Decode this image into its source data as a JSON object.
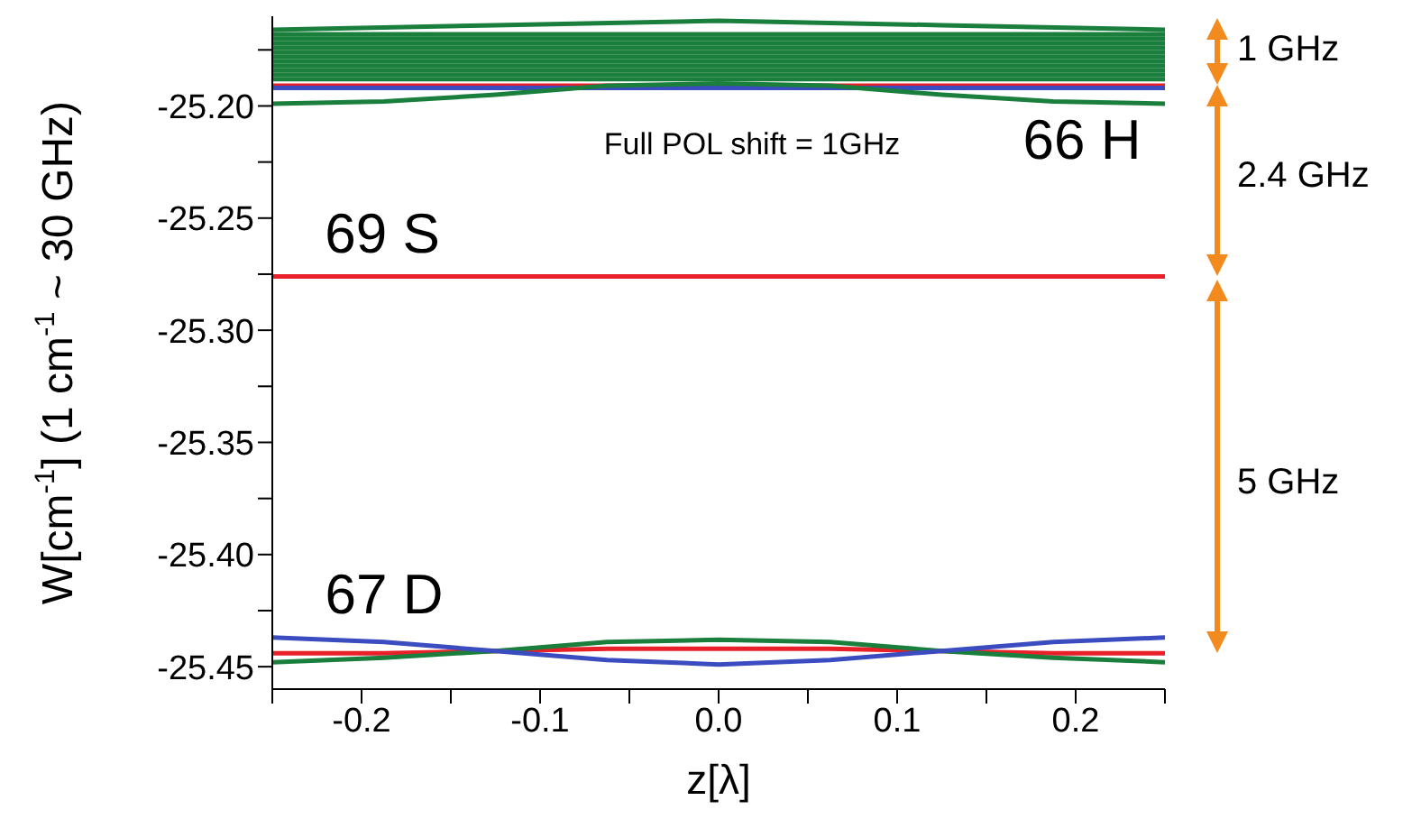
{
  "chart_data": {
    "type": "line",
    "xlabel": "z[λ]",
    "ylabel": "W[cm$^{-1}$] (1 cm$^{-1}$ ~ 30 GHz)",
    "xlim": [
      -0.25,
      0.25
    ],
    "xticks": [
      {
        "value": -0.25,
        "label": null
      },
      -0.2,
      {
        "value": -0.15,
        "label": null
      },
      -0.1,
      {
        "value": -0.05,
        "label": null
      },
      {
        "value": 0,
        "label": "0.0"
      },
      {
        "value": 0.05,
        "label": null
      },
      0.1,
      {
        "value": 0.15,
        "label": null
      },
      0.2,
      {
        "value": 0.25,
        "label": null
      }
    ],
    "ylim": [
      -25.46,
      -25.16
    ],
    "yticks": [
      {
        "value": -25.175,
        "label": null
      },
      {
        "value": -25.2,
        "label": "-25.20"
      },
      {
        "value": -25.225,
        "label": null
      },
      -25.25,
      {
        "value": -25.275,
        "label": null
      },
      {
        "value": -25.3,
        "label": "-25.30"
      },
      {
        "value": -25.325,
        "label": null
      },
      -25.35,
      {
        "value": -25.375,
        "label": null
      },
      {
        "value": -25.4,
        "label": "-25.40"
      },
      {
        "value": -25.425,
        "label": null
      },
      -25.45
    ],
    "series": [
      {
        "color": "#1a7f3c",
        "x": [
          -0.25,
          -0.125,
          0,
          0.125,
          0.25
        ],
        "values": [
          -25.166,
          -25.164,
          -25.162,
          -25.164,
          -25.166
        ]
      },
      {
        "color": "#1a7f3c",
        "x": [
          -0.25,
          0,
          0.25
        ],
        "values": [
          -25.168,
          -25.168,
          -25.168
        ]
      },
      {
        "color": "#1a7f3c",
        "x": [
          -0.25,
          0,
          0.25
        ],
        "values": [
          -25.17,
          -25.17,
          -25.17
        ]
      },
      {
        "color": "#1a7f3c",
        "x": [
          -0.25,
          0,
          0.25
        ],
        "values": [
          -25.172,
          -25.172,
          -25.172
        ]
      },
      {
        "color": "#1a7f3c",
        "x": [
          -0.25,
          0,
          0.25
        ],
        "values": [
          -25.174,
          -25.174,
          -25.174
        ]
      },
      {
        "color": "#1a7f3c",
        "x": [
          -0.25,
          0,
          0.25
        ],
        "values": [
          -25.176,
          -25.176,
          -25.176
        ]
      },
      {
        "color": "#1a7f3c",
        "x": [
          -0.25,
          0,
          0.25
        ],
        "values": [
          -25.178,
          -25.178,
          -25.178
        ]
      },
      {
        "color": "#1a7f3c",
        "x": [
          -0.25,
          0,
          0.25
        ],
        "values": [
          -25.18,
          -25.18,
          -25.18
        ]
      },
      {
        "color": "#1a7f3c",
        "x": [
          -0.25,
          0,
          0.25
        ],
        "values": [
          -25.182,
          -25.182,
          -25.182
        ]
      },
      {
        "color": "#1a7f3c",
        "x": [
          -0.25,
          0,
          0.25
        ],
        "values": [
          -25.184,
          -25.184,
          -25.184
        ]
      },
      {
        "color": "#1a7f3c",
        "x": [
          -0.25,
          0,
          0.25
        ],
        "values": [
          -25.186,
          -25.186,
          -25.186
        ]
      },
      {
        "color": "#1a7f3c",
        "x": [
          -0.25,
          0,
          0.25
        ],
        "values": [
          -25.188,
          -25.188,
          -25.188
        ]
      },
      {
        "color": "#e8202a",
        "x": [
          -0.25,
          0,
          0.25
        ],
        "values": [
          -25.191,
          -25.191,
          -25.191
        ]
      },
      {
        "color": "#3b4cc0",
        "x": [
          -0.25,
          0,
          0.25
        ],
        "values": [
          -25.192,
          -25.192,
          -25.192
        ]
      },
      {
        "color": "#1a7f3c",
        "x": [
          -0.25,
          -0.1875,
          -0.125,
          -0.0625,
          0,
          0.0625,
          0.125,
          0.1875,
          0.25
        ],
        "values": [
          -25.199,
          -25.198,
          -25.195,
          -25.191,
          -25.19,
          -25.191,
          -25.195,
          -25.198,
          -25.199
        ]
      },
      {
        "color": "#e8202a",
        "x": [
          -0.25,
          0,
          0.25
        ],
        "values": [
          -25.276,
          -25.276,
          -25.276
        ]
      },
      {
        "color": "#e8202a",
        "x": [
          -0.25,
          -0.1875,
          -0.125,
          -0.0625,
          0,
          0.0625,
          0.125,
          0.1875,
          0.25
        ],
        "values": [
          -25.444,
          -25.444,
          -25.443,
          -25.442,
          -25.442,
          -25.442,
          -25.443,
          -25.444,
          -25.444
        ]
      },
      {
        "color": "#1a7f3c",
        "x": [
          -0.25,
          -0.1875,
          -0.125,
          -0.0625,
          0,
          0.0625,
          0.125,
          0.1875,
          0.25
        ],
        "values": [
          -25.448,
          -25.446,
          -25.443,
          -25.439,
          -25.438,
          -25.439,
          -25.443,
          -25.446,
          -25.448
        ]
      },
      {
        "color": "#3b4cc0",
        "x": [
          -0.25,
          -0.1875,
          -0.125,
          -0.0625,
          0,
          0.0625,
          0.125,
          0.1875,
          0.25
        ],
        "values": [
          -25.437,
          -25.439,
          -25.443,
          -25.447,
          -25.449,
          -25.447,
          -25.443,
          -25.439,
          -25.437
        ]
      }
    ],
    "annotations": [
      "Full POL shift = 1GHz",
      "66 H",
      "69 S",
      "67 D",
      "1 GHz",
      "2.4 GHz",
      "5 GHz"
    ]
  }
}
